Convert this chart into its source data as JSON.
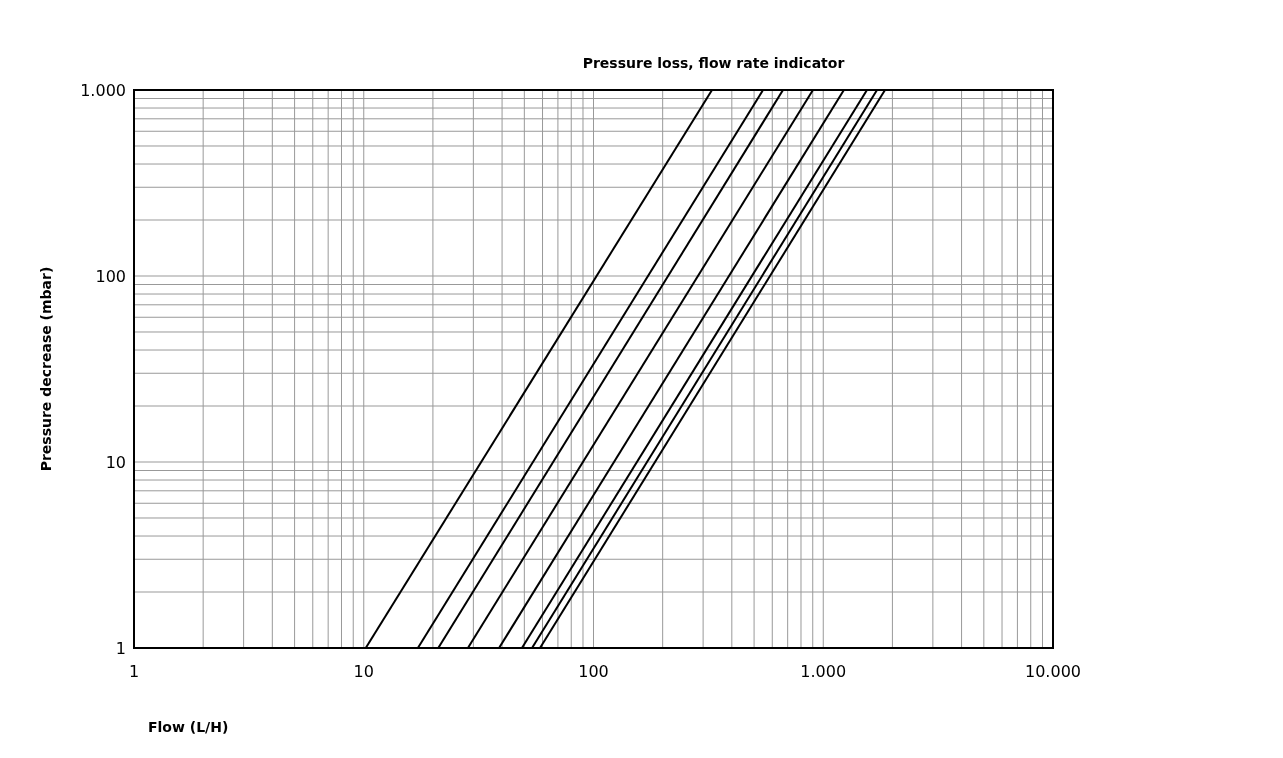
{
  "chart_data": {
    "type": "line",
    "title": "Pressure loss, flow rate indicator",
    "xlabel": "Flow (L/H)",
    "ylabel": "Pressure decrease (mbar)",
    "log": "xy",
    "grid": true,
    "legend": false,
    "marker": "none",
    "line_style": "solid",
    "xlim": [
      1,
      10000
    ],
    "ylim": [
      1,
      1000
    ],
    "xticks": [
      1,
      {
        "value": 2,
        "label": null
      },
      {
        "value": 3,
        "label": null
      },
      {
        "value": 4,
        "label": null
      },
      {
        "value": 5,
        "label": null
      },
      {
        "value": 6,
        "label": null
      },
      {
        "value": 7,
        "label": null
      },
      {
        "value": 8,
        "label": null
      },
      {
        "value": 9,
        "label": null
      },
      10,
      {
        "value": 20,
        "label": null
      },
      {
        "value": 30,
        "label": null
      },
      {
        "value": 40,
        "label": null
      },
      {
        "value": 50,
        "label": null
      },
      {
        "value": 60,
        "label": null
      },
      {
        "value": 70,
        "label": null
      },
      {
        "value": 80,
        "label": null
      },
      {
        "value": 90,
        "label": null
      },
      100,
      {
        "value": 200,
        "label": null
      },
      {
        "value": 300,
        "label": null
      },
      {
        "value": 400,
        "label": null
      },
      {
        "value": 500,
        "label": null
      },
      {
        "value": 600,
        "label": null
      },
      {
        "value": 700,
        "label": null
      },
      {
        "value": 800,
        "label": null
      },
      {
        "value": 900,
        "label": null
      },
      {
        "value": 1000,
        "label": "1.000"
      },
      {
        "value": 2000,
        "label": null
      },
      {
        "value": 3000,
        "label": null
      },
      {
        "value": 4000,
        "label": null
      },
      {
        "value": 5000,
        "label": null
      },
      {
        "value": 6000,
        "label": null
      },
      {
        "value": 7000,
        "label": null
      },
      {
        "value": 8000,
        "label": null
      },
      {
        "value": 9000,
        "label": null
      },
      {
        "value": 10000,
        "label": "10.000"
      }
    ],
    "yticks": [
      1,
      {
        "value": 2,
        "label": null
      },
      {
        "value": 3,
        "label": null
      },
      {
        "value": 4,
        "label": null
      },
      {
        "value": 5,
        "label": null
      },
      {
        "value": 6,
        "label": null
      },
      {
        "value": 7,
        "label": null
      },
      {
        "value": 8,
        "label": null
      },
      {
        "value": 9,
        "label": null
      },
      10,
      {
        "value": 20,
        "label": null
      },
      {
        "value": 30,
        "label": null
      },
      {
        "value": 40,
        "label": null
      },
      {
        "value": 50,
        "label": null
      },
      {
        "value": 60,
        "label": null
      },
      {
        "value": 70,
        "label": null
      },
      {
        "value": 80,
        "label": null
      },
      {
        "value": 90,
        "label": null
      },
      100,
      {
        "value": 200,
        "label": null
      },
      {
        "value": 300,
        "label": null
      },
      {
        "value": 400,
        "label": null
      },
      {
        "value": 500,
        "label": null
      },
      {
        "value": 600,
        "label": null
      },
      {
        "value": 700,
        "label": null
      },
      {
        "value": 800,
        "label": null
      },
      {
        "value": 900,
        "label": null
      },
      {
        "value": 1000,
        "label": "1.000"
      }
    ],
    "series": [
      {
        "color": "#000000",
        "x": [
          10.2,
          328
        ],
        "values": [
          1,
          1000
        ]
      },
      {
        "color": "#000000",
        "x": [
          17.2,
          547
        ],
        "values": [
          1,
          1000
        ]
      },
      {
        "color": "#000000",
        "x": [
          21.1,
          668
        ],
        "values": [
          1,
          1000
        ]
      },
      {
        "color": "#000000",
        "x": [
          28.4,
          902
        ],
        "values": [
          1,
          1000
        ]
      },
      {
        "color": "#000000",
        "x": [
          38.8,
          1230
        ],
        "values": [
          1,
          1000
        ]
      },
      {
        "color": "#000000",
        "x": [
          48.8,
          1550
        ],
        "values": [
          1,
          1000
        ]
      },
      {
        "color": "#000000",
        "x": [
          54,
          1714
        ],
        "values": [
          1,
          1000
        ]
      },
      {
        "color": "#000000",
        "x": [
          58.5,
          1857
        ],
        "values": [
          1,
          1000
        ]
      }
    ]
  }
}
